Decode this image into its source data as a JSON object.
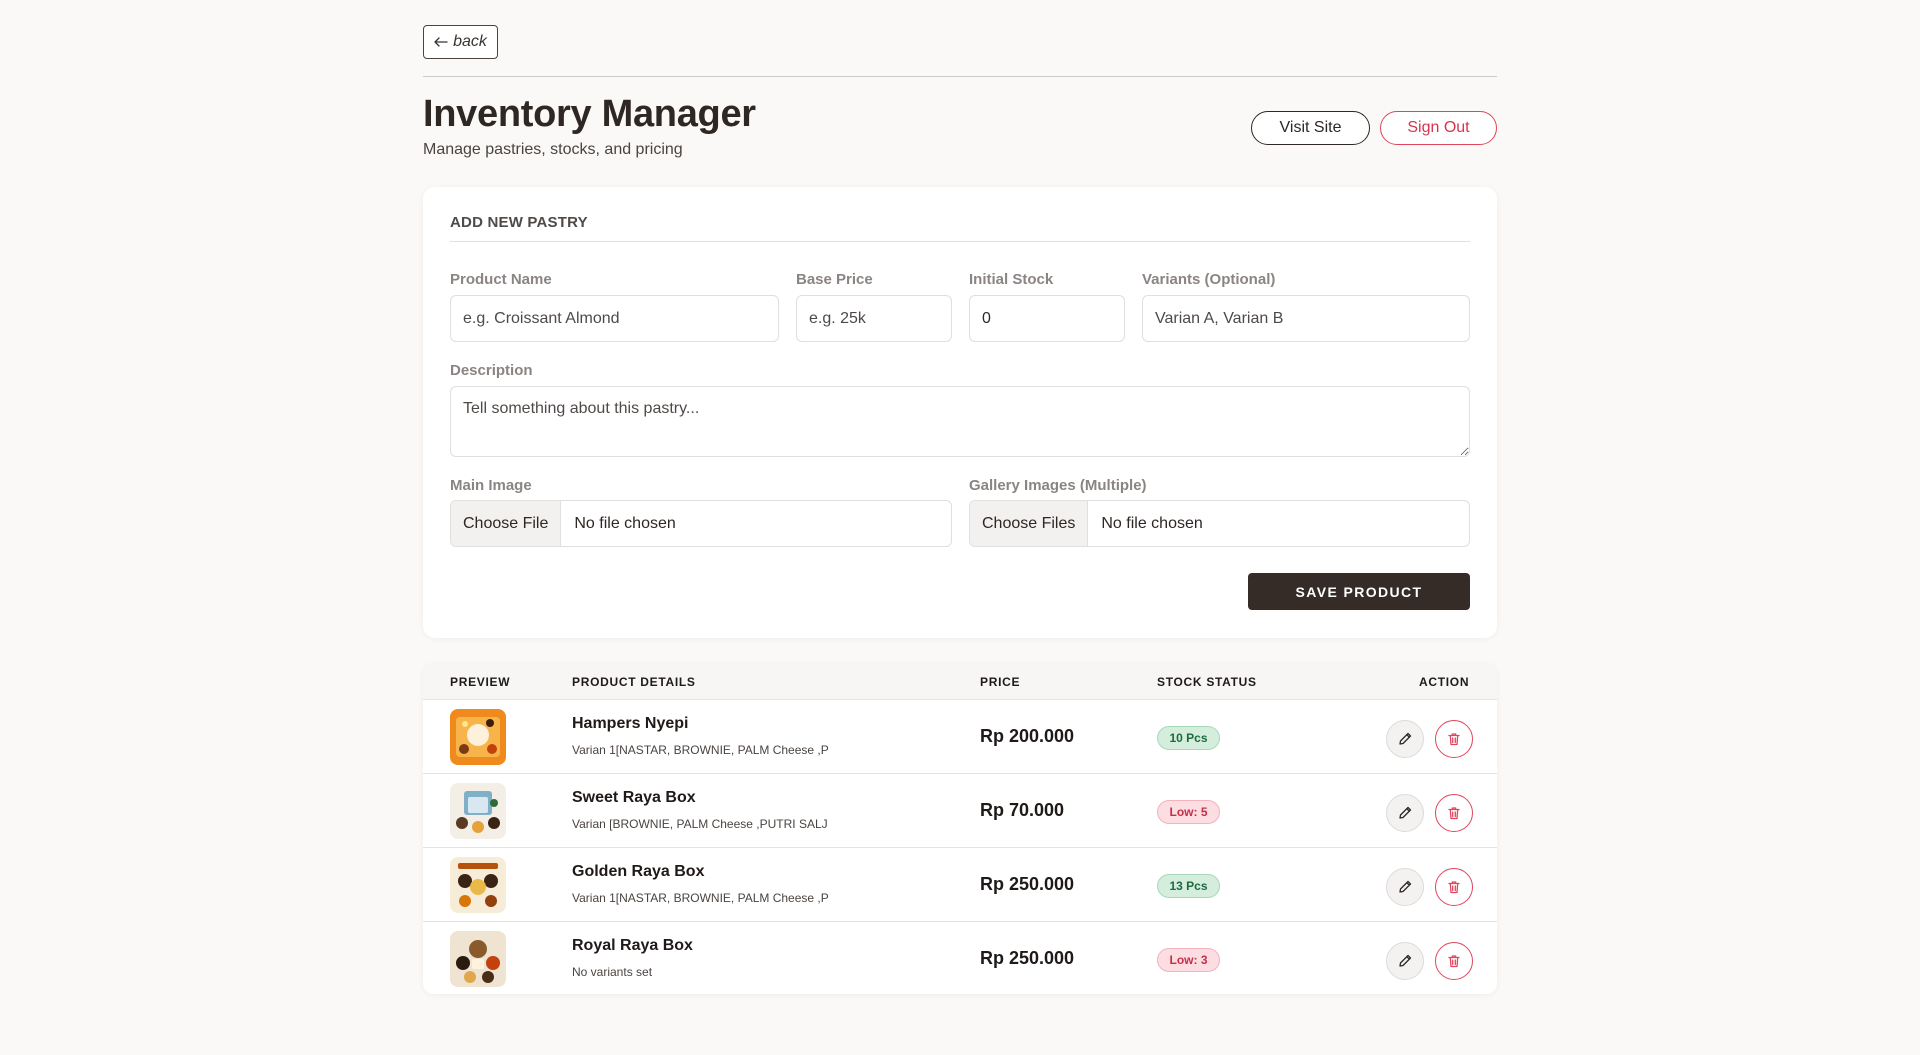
{
  "nav": {
    "back_label": "back"
  },
  "header": {
    "title": "Inventory Manager",
    "subtitle": "Manage pastries, stocks, and pricing",
    "visit_site_label": "Visit Site",
    "sign_out_label": "Sign Out"
  },
  "form": {
    "heading": "ADD NEW PASTRY",
    "product_name": {
      "label": "Product Name",
      "placeholder": "e.g. Croissant Almond"
    },
    "base_price": {
      "label": "Base Price",
      "placeholder": "e.g. 25k"
    },
    "initial_stock": {
      "label": "Initial Stock",
      "value": "0"
    },
    "variants": {
      "label": "Variants (Optional)",
      "placeholder": "Varian A, Varian B"
    },
    "description": {
      "label": "Description",
      "placeholder": "Tell something about this pastry..."
    },
    "main_image": {
      "label": "Main Image",
      "button": "Choose File",
      "status": "No file chosen"
    },
    "gallery_images": {
      "label": "Gallery Images (Multiple)",
      "button": "Choose Files",
      "status": "No file chosen"
    },
    "save_label": "SAVE PRODUCT"
  },
  "table": {
    "headers": {
      "preview": "PREVIEW",
      "details": "PRODUCT DETAILS",
      "price": "PRICE",
      "stock": "STOCK STATUS",
      "action": "ACTION"
    },
    "rows": [
      {
        "name": "Hampers Nyepi",
        "variants": "Varian 1[NASTAR, BROWNIE, PALM Cheese ,P",
        "price": "Rp 200.000",
        "stock": "10 Pcs",
        "stock_level": "ok"
      },
      {
        "name": "Sweet Raya Box",
        "variants": "Varian [BROWNIE, PALM Cheese ,PUTRI SALJ",
        "price": "Rp 70.000",
        "stock": "Low: 5",
        "stock_level": "low"
      },
      {
        "name": "Golden Raya Box",
        "variants": "Varian 1[NASTAR, BROWNIE, PALM Cheese ,P",
        "price": "Rp 250.000",
        "stock": "13 Pcs",
        "stock_level": "ok"
      },
      {
        "name": "Royal Raya Box",
        "variants": "No variants set",
        "price": "Rp 250.000",
        "stock": "Low: 3",
        "stock_level": "low"
      }
    ]
  },
  "icons": {
    "back": "arrow-left-icon",
    "edit": "pencil-icon",
    "delete": "trash-icon"
  },
  "colors": {
    "background": "#fbf9f7",
    "primary_dark": "#352c28",
    "danger": "#e0455d",
    "ok_badge_bg": "#d4eddd",
    "low_badge_bg": "#fbdde2"
  }
}
